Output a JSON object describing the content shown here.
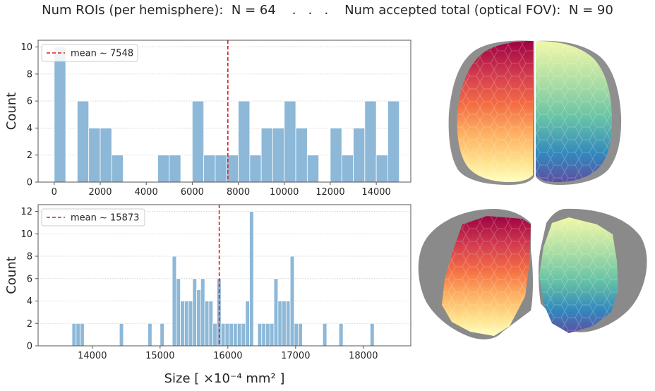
{
  "suptitle": "Num ROIs (per hemisphere):  N = 64    .   .   .    Num accepted total (optical FOV):  N = 90",
  "colors": {
    "bar": "#8db8d8",
    "mean_line": "#e41a1c",
    "grid": "#c8c8c8"
  },
  "chart_data": [
    {
      "type": "bar",
      "xlim": [
        -700,
        15500
      ],
      "ylim": [
        0,
        10.5
      ],
      "xticks": [
        0,
        2000,
        4000,
        6000,
        8000,
        10000,
        12000,
        14000
      ],
      "yticks": [
        0,
        2,
        4,
        6,
        8,
        10
      ],
      "ylabel": "Count",
      "xlabel": "",
      "grid": "horizontal dotted",
      "bin_width": 500,
      "bins_left": [
        0,
        1000,
        1500,
        2000,
        2500,
        4500,
        5000,
        6000,
        6500,
        7000,
        7500,
        8000,
        8500,
        9000,
        9500,
        10000,
        10500,
        11000,
        12000,
        12500,
        13000,
        13500,
        14000,
        14500
      ],
      "values": [
        10,
        6,
        4,
        4,
        2,
        2,
        2,
        6,
        2,
        2,
        2,
        6,
        2,
        4,
        4,
        6,
        4,
        2,
        4,
        2,
        4,
        6,
        2,
        6
      ],
      "mean": 7548,
      "legend": {
        "label": "mean ~ 7548",
        "position": "top-left"
      }
    },
    {
      "type": "bar",
      "xlim": [
        13200,
        18700
      ],
      "ylim": [
        0,
        12.6
      ],
      "xticks": [
        14000,
        15000,
        16000,
        17000,
        18000
      ],
      "yticks": [
        0,
        2,
        4,
        6,
        8,
        10,
        12
      ],
      "ylabel": "Count",
      "xlabel": "Size  [ ×10⁻⁴ mm² ]",
      "grid": "horizontal dotted",
      "bin_width": 60,
      "bins_left": [
        13700,
        13760,
        13820,
        14400,
        14820,
        15000,
        15180,
        15240,
        15300,
        15360,
        15420,
        15480,
        15540,
        15600,
        15660,
        15720,
        15780,
        15840,
        15900,
        15960,
        16020,
        16080,
        16140,
        16200,
        16260,
        16320,
        16440,
        16500,
        16560,
        16620,
        16680,
        16740,
        16800,
        16860,
        16920,
        16980,
        17040,
        17400,
        17640,
        18100
      ],
      "values": [
        2,
        2,
        2,
        2,
        2,
        2,
        8,
        6,
        4,
        4,
        4,
        6,
        5,
        6,
        4,
        4,
        2,
        6,
        2,
        2,
        2,
        2,
        2,
        2,
        4,
        12,
        2,
        2,
        2,
        2,
        6,
        4,
        4,
        4,
        8,
        2,
        2,
        2,
        2,
        2
      ],
      "mean": 15873,
      "legend": {
        "label": "mean ~ 15873",
        "position": "top-left"
      }
    }
  ]
}
